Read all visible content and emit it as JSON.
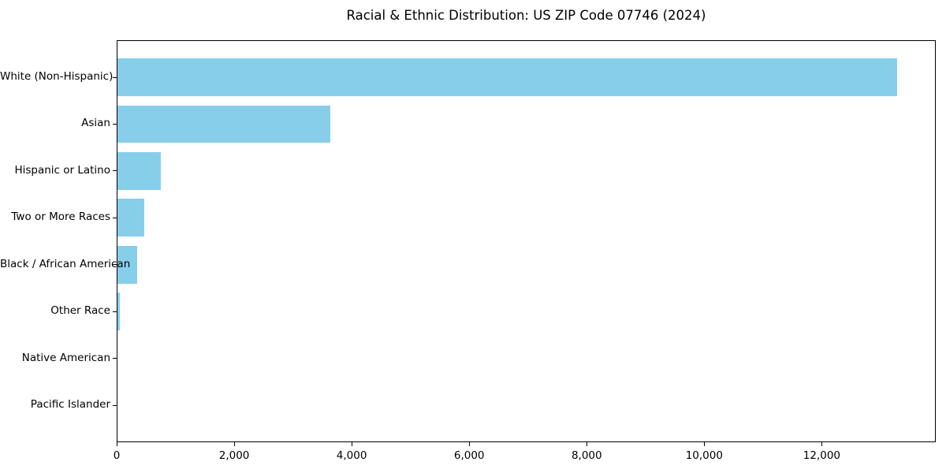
{
  "chart_data": {
    "type": "bar",
    "orientation": "horizontal",
    "title": "Racial & Ethnic Distribution: US ZIP Code 07746 (2024)",
    "categories": [
      "White (Non-Hispanic)",
      "Asian",
      "Hispanic or Latino",
      "Two or More Races",
      "Black / African American",
      "Other Race",
      "Native American",
      "Pacific Islander"
    ],
    "values": [
      13270,
      3620,
      740,
      450,
      335,
      40,
      0,
      0
    ],
    "bar_color": "#87CEEB",
    "axis_color": "#000000",
    "xlim": [
      0,
      13940
    ],
    "x_ticks": [
      {
        "value": 0,
        "label": "0"
      },
      {
        "value": 2000,
        "label": "2,000"
      },
      {
        "value": 4000,
        "label": "4,000"
      },
      {
        "value": 6000,
        "label": "6,000"
      },
      {
        "value": 8000,
        "label": "8,000"
      },
      {
        "value": 10000,
        "label": "10,000"
      },
      {
        "value": 12000,
        "label": "12,000"
      }
    ],
    "xlabel": "",
    "ylabel": "",
    "grid": false
  }
}
